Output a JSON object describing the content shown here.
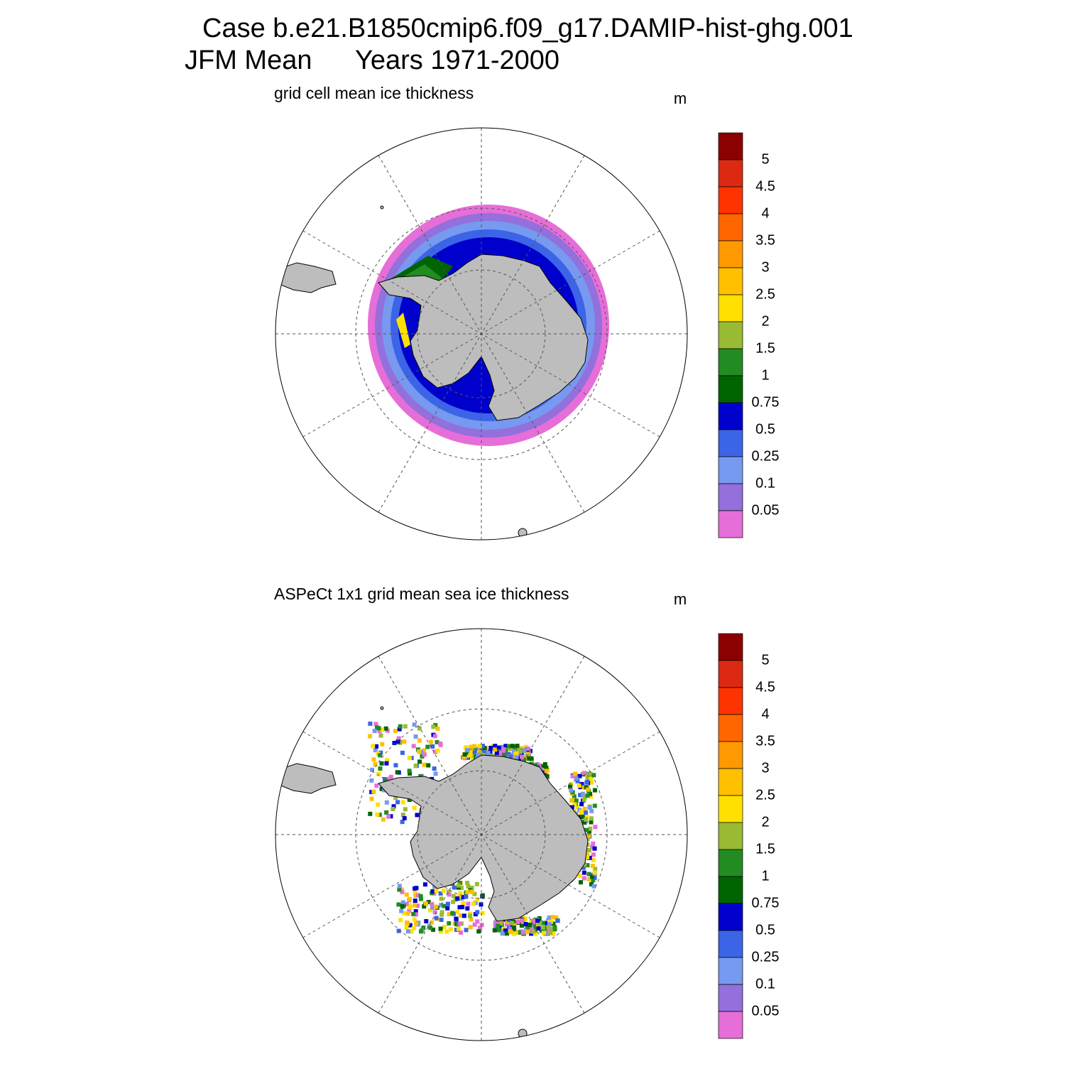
{
  "header": {
    "title": "Case b.e21.B1850cmip6.f09_g17.DAMIP-hist-ghg.001",
    "season": "JFM Mean",
    "years": "Years 1971-2000"
  },
  "panels": [
    {
      "title": "grid cell mean ice thickness",
      "units": "m",
      "colorbar": {
        "labels": [
          5,
          4.5,
          4,
          3.5,
          3,
          2.5,
          2,
          1.5,
          1,
          0.75,
          0.5,
          0.25,
          0.1,
          0.05
        ],
        "colors": [
          "#8b0000",
          "#dc2a12",
          "#ff3300",
          "#ff6600",
          "#ff9900",
          "#ffc000",
          "#ffe000",
          "#99bb33",
          "#228b22",
          "#006400",
          "#0000cc",
          "#3c64e6",
          "#7799f0",
          "#9370db",
          "#e66ed8"
        ]
      }
    },
    {
      "title": "ASPeCt 1x1 grid mean sea ice thickness",
      "units": "m",
      "colorbar": {
        "labels": [
          5,
          4.5,
          4,
          3.5,
          3,
          2.5,
          2,
          1.5,
          1,
          0.75,
          0.5,
          0.25,
          0.1,
          0.05
        ],
        "colors": [
          "#8b0000",
          "#dc2a12",
          "#ff3300",
          "#ff6600",
          "#ff9900",
          "#ffc000",
          "#ffe000",
          "#99bb33",
          "#228b22",
          "#006400",
          "#0000cc",
          "#3c64e6",
          "#7799f0",
          "#9370db",
          "#e66ed8"
        ]
      }
    }
  ]
}
